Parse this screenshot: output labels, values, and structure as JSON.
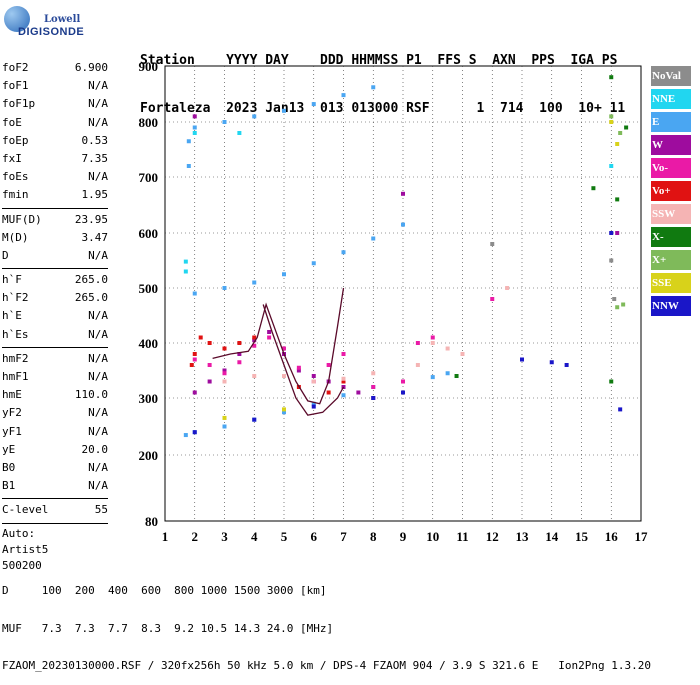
{
  "logo": {
    "line1": "Lowell",
    "line2": "DIGISONDE"
  },
  "header": {
    "line1": "Station    YYYY DAY    DDD HHMMSS P1  FFS S  AXN  PPS  IGA PS",
    "line2": "Fortaleza  2023 Jan13  013 013000 RSF      1  714  100  10+ 11"
  },
  "params": {
    "group1": [
      {
        "label": "foF2",
        "value": "6.900"
      },
      {
        "label": "foF1",
        "value": "N/A"
      },
      {
        "label": "foF1p",
        "value": "N/A"
      },
      {
        "label": "foE",
        "value": "N/A"
      },
      {
        "label": "foEp",
        "value": "0.53"
      },
      {
        "label": "fxI",
        "value": "7.35"
      },
      {
        "label": "foEs",
        "value": "N/A"
      },
      {
        "label": "fmin",
        "value": "1.95"
      }
    ],
    "group2": [
      {
        "label": "MUF(D)",
        "value": "23.95"
      },
      {
        "label": "M(D)",
        "value": "3.47"
      },
      {
        "label": "D",
        "value": "N/A"
      }
    ],
    "group3": [
      {
        "label": "h`F",
        "value": "265.0"
      },
      {
        "label": "h`F2",
        "value": "265.0"
      },
      {
        "label": "h`E",
        "value": "N/A"
      },
      {
        "label": "h`Es",
        "value": "N/A"
      }
    ],
    "group4": [
      {
        "label": "hmF2",
        "value": "N/A"
      },
      {
        "label": "hmF1",
        "value": "N/A"
      },
      {
        "label": "hmE",
        "value": "110.0"
      },
      {
        "label": "yF2",
        "value": "N/A"
      },
      {
        "label": "yF1",
        "value": "N/A"
      },
      {
        "label": "yE",
        "value": "20.0"
      },
      {
        "label": "B0",
        "value": "N/A"
      },
      {
        "label": "B1",
        "value": "N/A"
      }
    ],
    "clevel": {
      "label": "C-level",
      "value": "55"
    },
    "auto": [
      "Auto:",
      "Artist5",
      "500200"
    ]
  },
  "legend": [
    {
      "label": "NoVal",
      "color": "#8c8c8c"
    },
    {
      "label": "NNE",
      "color": "#21d6f0"
    },
    {
      "label": "E",
      "color": "#4aa6f2"
    },
    {
      "label": "W",
      "color": "#9e0c9e"
    },
    {
      "label": "Vo-",
      "color": "#ea1aa6"
    },
    {
      "label": "Vo+",
      "color": "#e01212"
    },
    {
      "label": "SSW",
      "color": "#f5b4b4"
    },
    {
      "label": "X-",
      "color": "#107a10"
    },
    {
      "label": "X+",
      "color": "#7fba5a"
    },
    {
      "label": "SSE",
      "color": "#d8d21a"
    },
    {
      "label": "NNW",
      "color": "#1a16c8"
    }
  ],
  "footer": {
    "line1": "D     100  200  400  600  800 1000 1500 3000 [km]",
    "line2": "MUF   7.3  7.3  7.7  8.3  9.2 10.5 14.3 24.0 [MHz]",
    "line3": "FZAOM_20230130000.RSF / 320fx256h 50 kHz 5.0 km / DPS-4 FZAOM 904 / 3.9 S 321.6 E   Ion2Png 1.3.20"
  },
  "chart_data": {
    "type": "scatter",
    "x_ticks": [
      "1",
      "2",
      "3",
      "4",
      "5",
      "6",
      "7",
      "8",
      "9",
      "10",
      "11",
      "12",
      "13",
      "14",
      "15",
      "16",
      "17"
    ],
    "y_ticks": [
      "80",
      "200",
      "300",
      "400",
      "500",
      "600",
      "700",
      "800",
      "900"
    ],
    "xlim": [
      1,
      17
    ],
    "ylim": [
      80,
      900
    ],
    "grid": true,
    "legend_position": "right",
    "series": [
      {
        "name": "E",
        "points": [
          [
            1.7,
            235
          ],
          [
            2.0,
            240
          ],
          [
            3.0,
            250
          ],
          [
            4.0,
            262
          ],
          [
            5.0,
            275
          ],
          [
            6.0,
            290
          ],
          [
            7.0,
            305
          ],
          [
            8.0,
            320
          ],
          [
            9.0,
            330
          ],
          [
            10.0,
            338
          ],
          [
            10.5,
            345
          ],
          [
            2.0,
            490
          ],
          [
            3.0,
            500
          ],
          [
            4.0,
            510
          ],
          [
            5.0,
            525
          ],
          [
            6.0,
            545
          ],
          [
            7.0,
            565
          ],
          [
            8.0,
            590
          ],
          [
            9.0,
            615
          ],
          [
            2.0,
            790
          ],
          [
            3.0,
            800
          ],
          [
            4.0,
            810
          ],
          [
            5.0,
            820
          ],
          [
            6.0,
            832
          ],
          [
            7.0,
            848
          ],
          [
            8.0,
            862
          ],
          [
            1.8,
            720
          ],
          [
            1.8,
            765
          ]
        ]
      },
      {
        "name": "NNE",
        "points": [
          [
            1.7,
            530
          ],
          [
            1.7,
            548
          ],
          [
            2.0,
            780
          ],
          [
            3.5,
            780
          ],
          [
            16.0,
            720
          ]
        ]
      },
      {
        "name": "W",
        "points": [
          [
            2.0,
            310
          ],
          [
            2.5,
            330
          ],
          [
            3.0,
            350
          ],
          [
            3.5,
            380
          ],
          [
            4.0,
            405
          ],
          [
            4.5,
            420
          ],
          [
            5.0,
            380
          ],
          [
            5.5,
            350
          ],
          [
            6.0,
            340
          ],
          [
            6.5,
            330
          ],
          [
            7.0,
            320
          ],
          [
            7.5,
            310
          ],
          [
            8.0,
            300
          ],
          [
            2.0,
            810
          ],
          [
            9.0,
            670
          ],
          [
            16.2,
            600
          ]
        ]
      },
      {
        "name": "Vo-",
        "points": [
          [
            2.0,
            370
          ],
          [
            2.5,
            360
          ],
          [
            3.0,
            345
          ],
          [
            3.5,
            365
          ],
          [
            4.0,
            395
          ],
          [
            4.5,
            410
          ],
          [
            5.0,
            390
          ],
          [
            5.5,
            355
          ],
          [
            6.0,
            330
          ],
          [
            6.5,
            360
          ],
          [
            7.0,
            380
          ],
          [
            8.0,
            320
          ],
          [
            9.0,
            330
          ],
          [
            9.5,
            400
          ],
          [
            10.0,
            410
          ],
          [
            12.0,
            480
          ]
        ]
      },
      {
        "name": "Vo+",
        "points": [
          [
            1.9,
            360
          ],
          [
            2.0,
            380
          ],
          [
            2.2,
            410
          ],
          [
            2.5,
            400
          ],
          [
            3.0,
            390
          ],
          [
            3.5,
            400
          ],
          [
            4.0,
            410
          ],
          [
            5.5,
            320
          ],
          [
            6.5,
            310
          ],
          [
            7.0,
            330
          ]
        ]
      },
      {
        "name": "SSW",
        "points": [
          [
            3.0,
            330
          ],
          [
            4.0,
            340
          ],
          [
            5.0,
            340
          ],
          [
            6.0,
            330
          ],
          [
            7.0,
            335
          ],
          [
            8.0,
            345
          ],
          [
            9.5,
            360
          ],
          [
            10.0,
            400
          ],
          [
            10.5,
            390
          ],
          [
            11.0,
            380
          ],
          [
            12.5,
            500
          ]
        ]
      },
      {
        "name": "X-",
        "points": [
          [
            16.0,
            880
          ],
          [
            16.2,
            660
          ],
          [
            16.5,
            790
          ],
          [
            15.4,
            680
          ],
          [
            16.0,
            330
          ],
          [
            10.8,
            340
          ]
        ]
      },
      {
        "name": "X+",
        "points": [
          [
            16.0,
            810
          ],
          [
            16.3,
            780
          ],
          [
            16.2,
            465
          ],
          [
            16.4,
            470
          ]
        ]
      },
      {
        "name": "SSE",
        "points": [
          [
            16.0,
            800
          ],
          [
            16.2,
            760
          ],
          [
            3.0,
            265
          ],
          [
            5.0,
            280
          ]
        ]
      },
      {
        "name": "NNW",
        "points": [
          [
            2.0,
            240
          ],
          [
            4.0,
            262
          ],
          [
            6.0,
            285
          ],
          [
            8.0,
            300
          ],
          [
            9.0,
            310
          ],
          [
            13.0,
            370
          ],
          [
            14.0,
            365
          ],
          [
            14.5,
            360
          ],
          [
            16.3,
            280
          ],
          [
            16.0,
            600
          ]
        ]
      },
      {
        "name": "NoVal",
        "points": [
          [
            16.0,
            550
          ],
          [
            16.1,
            480
          ],
          [
            12.0,
            580
          ]
        ]
      }
    ],
    "traces": [
      [
        [
          2.6,
          372
        ],
        [
          3.2,
          380
        ],
        [
          3.8,
          385
        ],
        [
          4.1,
          410
        ],
        [
          4.4,
          470
        ],
        [
          4.7,
          425
        ],
        [
          5.0,
          380
        ],
        [
          5.4,
          330
        ],
        [
          5.8,
          295
        ],
        [
          6.2,
          290
        ],
        [
          6.5,
          330
        ],
        [
          6.8,
          430
        ],
        [
          7.0,
          500
        ]
      ],
      [
        [
          4.3,
          470
        ],
        [
          4.6,
          420
        ],
        [
          5.0,
          360
        ],
        [
          5.4,
          300
        ],
        [
          5.8,
          270
        ],
        [
          6.3,
          275
        ],
        [
          6.8,
          300
        ],
        [
          7.0,
          320
        ]
      ]
    ]
  }
}
